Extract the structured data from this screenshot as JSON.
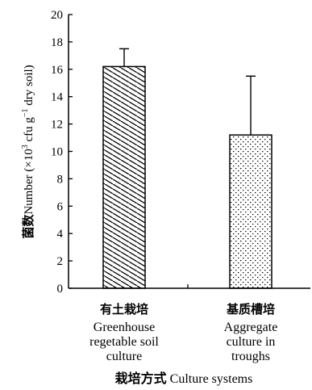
{
  "chart_data": {
    "type": "bar",
    "categories": [
      {
        "cn": "有土栽培",
        "en": [
          "Greenhouse",
          "regetable soil",
          "culture"
        ]
      },
      {
        "cn": "基质槽培",
        "en": [
          "Aggregate",
          "culture in",
          "troughs"
        ]
      }
    ],
    "values": [
      16.2,
      11.2
    ],
    "error_upper": [
      17.5,
      15.5
    ],
    "bar_patterns": [
      "diagonal-hatch",
      "dots"
    ],
    "ylim": [
      0,
      20
    ],
    "yticks": [
      "0",
      "2",
      "4",
      "6",
      "8",
      "10",
      "12",
      "14",
      "16",
      "18",
      "20"
    ],
    "ylabel": {
      "cn": "菌数",
      "main": "Number (×10",
      "sup": "3",
      "mid": " cfu g",
      "sup2": "−1",
      "end": " dry soil)"
    },
    "xlabel": {
      "cn": "栽培方式",
      "en": "Culture systems"
    },
    "grid": false,
    "legend": "none",
    "title": ""
  }
}
